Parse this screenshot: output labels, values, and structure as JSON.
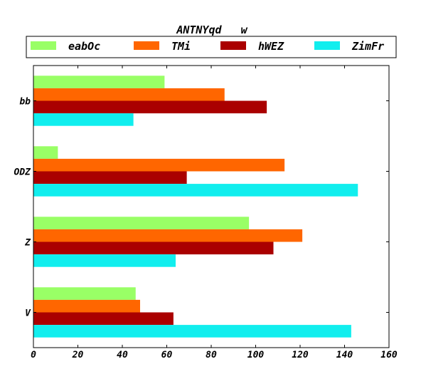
{
  "chart_data": {
    "type": "bar",
    "orientation": "horizontal",
    "title": "ANTNYqd   w",
    "categories": [
      "bb",
      "ODZ",
      "Z",
      "V"
    ],
    "series": [
      {
        "name": "eabOc",
        "color": "#99ff66",
        "values": [
          59,
          11,
          97,
          46
        ]
      },
      {
        "name": "TMi",
        "color": "#ff6600",
        "values": [
          86,
          113,
          121,
          48
        ]
      },
      {
        "name": "hWEZ",
        "color": "#aa0000",
        "values": [
          105,
          69,
          108,
          63
        ]
      },
      {
        "name": "ZimFr",
        "color": "#11eeee",
        "values": [
          45,
          146,
          64,
          143
        ]
      }
    ],
    "xlim": [
      0,
      160
    ],
    "xticks": [
      "0",
      "20",
      "40",
      "60",
      "80",
      "100",
      "120",
      "140",
      "160"
    ],
    "legend_position": "top",
    "grid": false
  }
}
